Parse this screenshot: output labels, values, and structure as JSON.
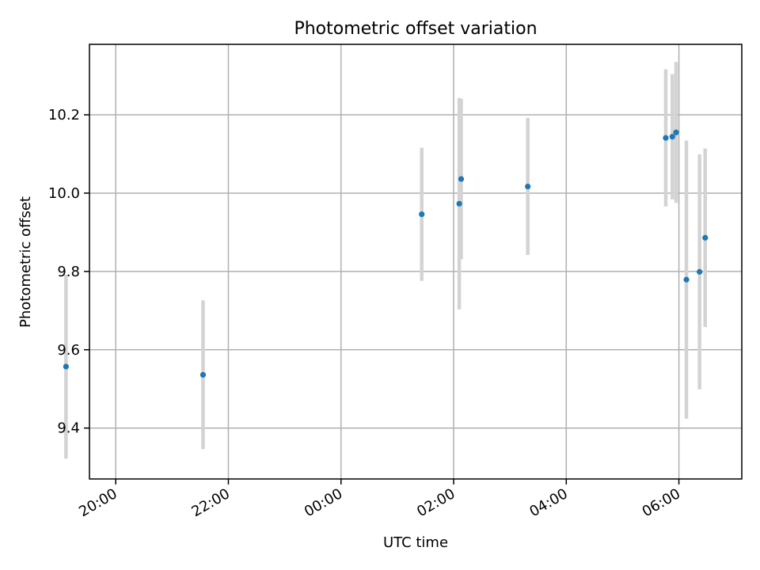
{
  "chart_data": {
    "type": "scatter",
    "title": "Photometric offset variation",
    "xlabel": "UTC time",
    "ylabel": "Photometric offset",
    "xlim": [
      "19:32",
      "07:07"
    ],
    "ylim": [
      9.27,
      10.38
    ],
    "x_ticks": [
      "20:00",
      "22:00",
      "00:00",
      "02:00",
      "04:00",
      "06:00"
    ],
    "y_ticks": [
      "9.4",
      "9.6",
      "9.8",
      "10.0",
      "10.2"
    ],
    "grid": true,
    "point_color": "#1f77b4",
    "errorbar_color": "#d3d3d3",
    "series": [
      {
        "points": [
          {
            "x": "19:07",
            "y": 9.557,
            "yerr": 0.235
          },
          {
            "x": "21:33",
            "y": 9.536,
            "yerr": 0.19
          },
          {
            "x": "01:26",
            "y": 9.946,
            "yerr": 0.17
          },
          {
            "x": "02:06",
            "y": 9.973,
            "yerr": 0.27
          },
          {
            "x": "02:08",
            "y": 10.036,
            "yerr": 0.205
          },
          {
            "x": "03:19",
            "y": 10.017,
            "yerr": 0.175
          },
          {
            "x": "05:46",
            "y": 10.141,
            "yerr": 0.175
          },
          {
            "x": "05:53",
            "y": 10.144,
            "yerr": 0.16
          },
          {
            "x": "05:57",
            "y": 10.155,
            "yerr": 0.18
          },
          {
            "x": "06:08",
            "y": 9.779,
            "yerr": 0.355
          },
          {
            "x": "06:22",
            "y": 9.799,
            "yerr": 0.3
          },
          {
            "x": "06:28",
            "y": 9.886,
            "yerr": 0.228
          }
        ]
      }
    ]
  }
}
